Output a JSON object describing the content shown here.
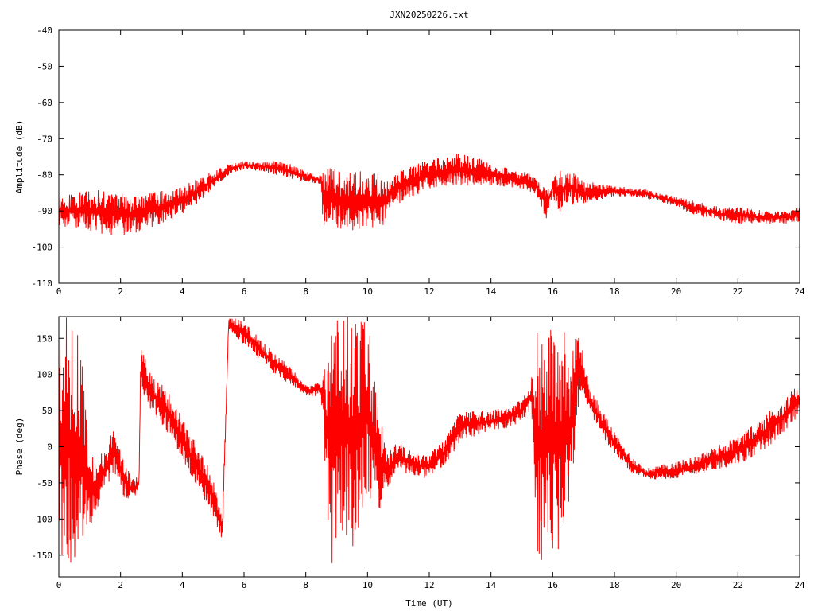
{
  "title": "JXN20250226.txt",
  "chart_data": [
    {
      "type": "line",
      "name": "amplitude",
      "ylabel": "Amplitude (dB)",
      "xlabel": "",
      "xlim": [
        0,
        24
      ],
      "ylim": [
        -110,
        -40
      ],
      "xticks": [
        "0",
        "2",
        "4",
        "6",
        "8",
        "10",
        "12",
        "14",
        "16",
        "18",
        "20",
        "22",
        "24"
      ],
      "yticks": [
        "-40",
        "-50",
        "-60",
        "-70",
        "-80",
        "-90",
        "-100",
        "-110"
      ],
      "grid": false,
      "color": "#ff0000",
      "series": [
        {
          "x": [
            0,
            0.5,
            1,
            1.5,
            2,
            2.5,
            3,
            3.5,
            4,
            4.5,
            5,
            5.5,
            6,
            6.5,
            7,
            7.5,
            8,
            8.5,
            8.55,
            9,
            9.5,
            10,
            10.6,
            10.7,
            11,
            11.5,
            12,
            12.5,
            13,
            13.5,
            14,
            14.5,
            15,
            15.4,
            15.6,
            15.8,
            16,
            16.2,
            16.5,
            16.8,
            17,
            17.5,
            18,
            18.5,
            19,
            19.5,
            20,
            20.5,
            21,
            21.5,
            22,
            22.5,
            23,
            23.5,
            24
          ],
          "low": [
            -94,
            -95,
            -96,
            -96.5,
            -97,
            -96,
            -94.5,
            -93,
            -91,
            -88,
            -84,
            -80,
            -78.5,
            -79,
            -80,
            -81,
            -82,
            -83,
            -95,
            -95.5,
            -95.5,
            -95,
            -94,
            -89,
            -88,
            -86,
            -84,
            -83,
            -83,
            -83,
            -83,
            -83.5,
            -84,
            -85,
            -88,
            -93,
            -86,
            -91,
            -88,
            -89,
            -88,
            -87,
            -86,
            -86,
            -86.5,
            -87.5,
            -89,
            -91,
            -92,
            -93,
            -93.5,
            -93.5,
            -93.5,
            -93.5,
            -93
          ],
          "high": [
            -86,
            -85,
            -84,
            -84,
            -85,
            -86,
            -85,
            -84,
            -83,
            -81,
            -79,
            -77,
            -76,
            -76.5,
            -76,
            -77,
            -79,
            -80,
            -77,
            -78,
            -79,
            -79,
            -80,
            -82,
            -79,
            -77,
            -76,
            -75,
            -74,
            -75,
            -77,
            -78,
            -79,
            -80,
            -82,
            -84,
            -81,
            -79,
            -78,
            -80,
            -82,
            -82,
            -83,
            -83.5,
            -84,
            -85,
            -86,
            -87,
            -88,
            -89,
            -89,
            -89.5,
            -90,
            -90,
            -89
          ]
        }
      ]
    },
    {
      "type": "line",
      "name": "phase",
      "ylabel": "Phase (deg)",
      "xlabel": "Time (UT)",
      "xlim": [
        0,
        24
      ],
      "ylim": [
        -180,
        180
      ],
      "xticks": [
        "0",
        "2",
        "4",
        "6",
        "8",
        "10",
        "12",
        "14",
        "16",
        "18",
        "20",
        "22",
        "24"
      ],
      "yticks": [
        "150",
        "100",
        "50",
        "0",
        "-50",
        "-100",
        "-150"
      ],
      "grid": false,
      "color": "#ff0000",
      "series": [
        {
          "x": [
            0,
            0.2,
            0.4,
            0.6,
            0.8,
            1.0,
            1.2,
            1.5,
            1.8,
            2.1,
            2.4,
            2.6,
            2.65,
            3.0,
            3.5,
            4.0,
            4.5,
            5.0,
            5.3,
            5.5,
            6.0,
            6.5,
            7.0,
            7.5,
            8.0,
            8.5,
            8.8,
            9.2,
            9.6,
            10.0,
            10.4,
            10.6,
            11.0,
            11.5,
            12.0,
            12.5,
            13.0,
            13.5,
            14.0,
            14.5,
            15.0,
            15.3,
            15.5,
            15.6,
            15.7,
            15.9,
            16.0,
            16.2,
            16.4,
            16.6,
            16.8,
            17.0,
            17.2,
            17.5,
            18.0,
            18.5,
            19.0,
            19.5,
            20.0,
            20.5,
            21.0,
            21.5,
            22.0,
            22.5,
            23.0,
            23.5,
            24.0
          ],
          "low": [
            -175,
            -178,
            -175,
            -170,
            -140,
            -120,
            -90,
            -60,
            -40,
            -70,
            -75,
            -60,
            80,
            50,
            20,
            -20,
            -60,
            -100,
            -130,
            160,
            140,
            120,
            100,
            85,
            70,
            70,
            -180,
            -120,
            -160,
            -80,
            -100,
            -60,
            -35,
            -40,
            -45,
            -25,
            5,
            15,
            20,
            25,
            35,
            50,
            -150,
            -175,
            -160,
            -150,
            -170,
            -140,
            -100,
            -60,
            40,
            70,
            50,
            20,
            -10,
            -35,
            -45,
            -45,
            -45,
            -40,
            -35,
            -30,
            -25,
            -15,
            0,
            20,
            45
          ],
          "high": [
            180,
            180,
            180,
            175,
            100,
            -10,
            -20,
            0,
            30,
            -20,
            -45,
            -40,
            140,
            100,
            80,
            40,
            0,
            -40,
            -100,
            180,
            175,
            150,
            130,
            110,
            85,
            90,
            180,
            180,
            180,
            180,
            50,
            -10,
            10,
            -10,
            -10,
            10,
            50,
            50,
            50,
            55,
            65,
            90,
            180,
            180,
            150,
            180,
            180,
            160,
            170,
            120,
            170,
            130,
            80,
            60,
            20,
            -10,
            -30,
            -25,
            -20,
            -15,
            -5,
            5,
            15,
            30,
            50,
            65,
            90
          ]
        }
      ]
    }
  ]
}
